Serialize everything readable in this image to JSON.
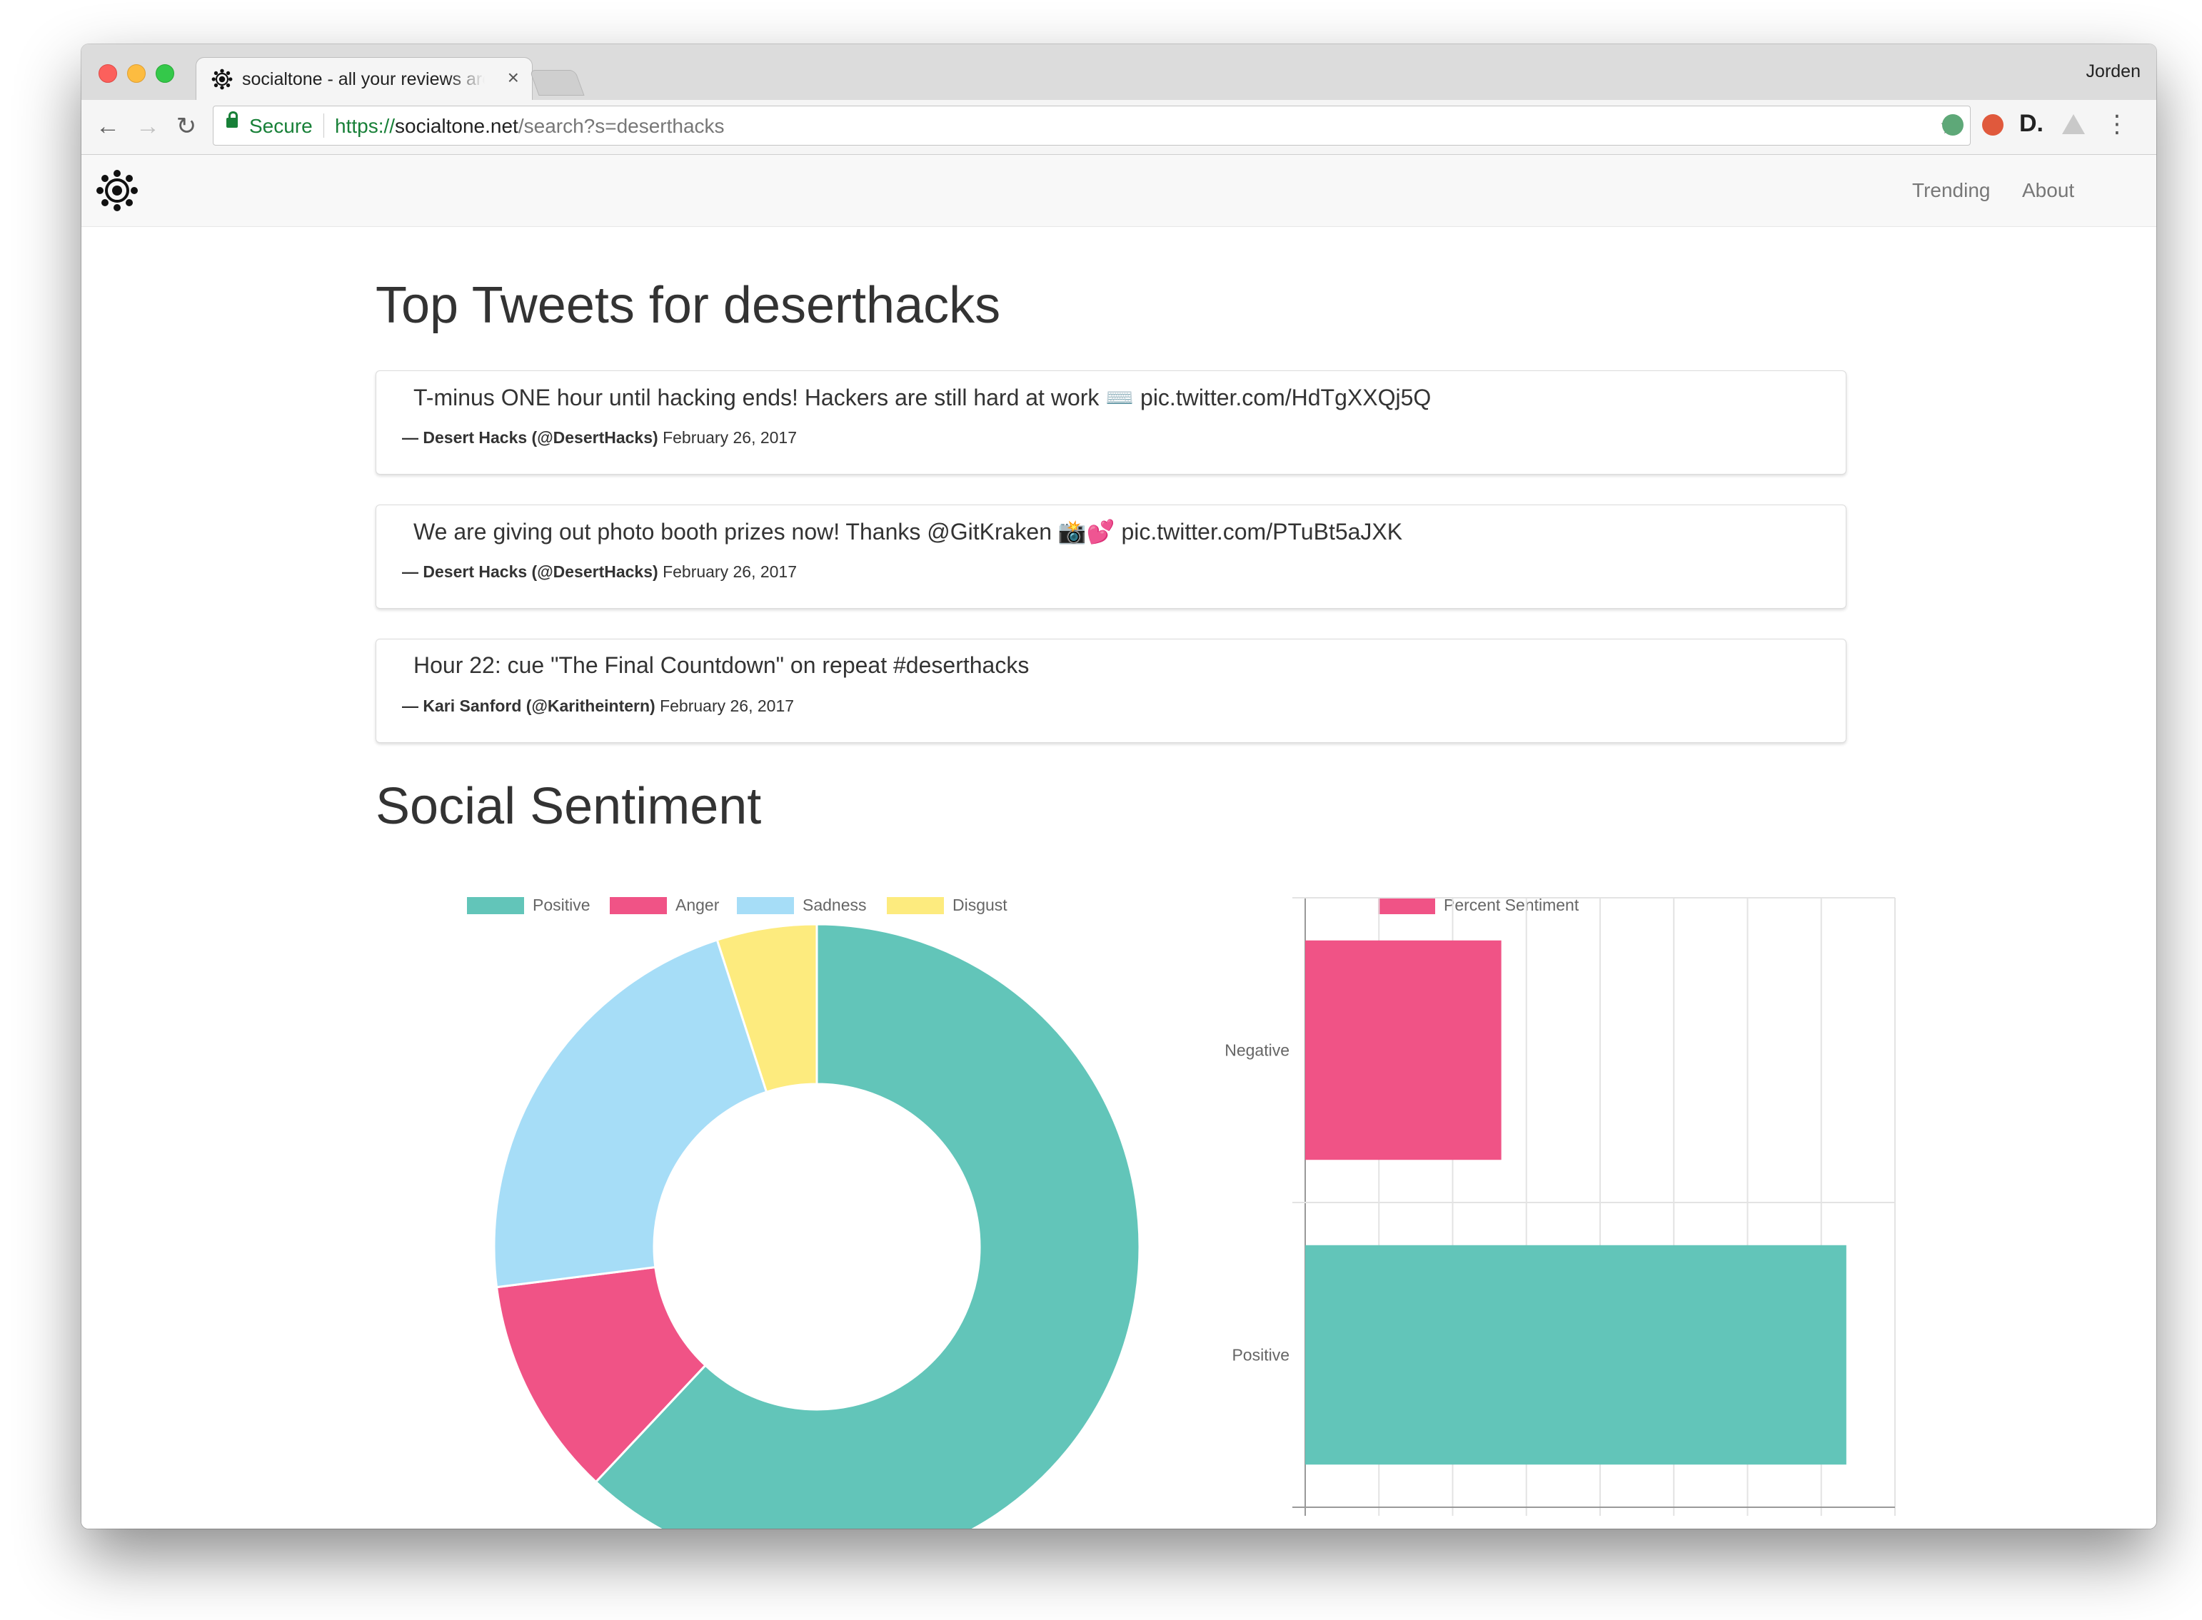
{
  "browser": {
    "tab_title": "socialtone - all your reviews are",
    "tab_close": "×",
    "profile_name": "Jorden",
    "back_icon": "←",
    "forward_icon": "→",
    "reload_icon": "↻",
    "secure_label": "Secure",
    "url_scheme": "https://",
    "url_host": "socialtone.net",
    "url_path": "/search?s=deserthacks",
    "star_icon": "☆",
    "menu_icon": "⋮",
    "extension_d_label": "D."
  },
  "navbar": {
    "links": [
      "Trending",
      "About"
    ]
  },
  "main": {
    "tweets_heading": "Top Tweets for deserthacks",
    "tweets": [
      {
        "text": "T-minus ONE hour until hacking ends! Hackers are still hard at work ⌨️ pic.twitter.com/HdTgXXQj5Q",
        "dash": "—",
        "author": "Desert Hacks (@DesertHacks)",
        "date": "February 26, 2017"
      },
      {
        "text": "We are giving out photo booth prizes now! Thanks @GitKraken 📸💕 pic.twitter.com/PTuBt5aJXK",
        "dash": "—",
        "author": "Desert Hacks (@DesertHacks)",
        "date": "February 26, 2017"
      },
      {
        "text": "Hour 22: cue \"The Final Countdown\" on repeat #deserthacks",
        "dash": "—",
        "author": "Kari Sanford (@Karitheintern)",
        "date": "February 26, 2017"
      }
    ],
    "sentiment_heading": "Social Sentiment"
  },
  "colors": {
    "teal": "#62c5b9",
    "pink": "#f05386",
    "lightblue": "#a6ddf7",
    "yellow": "#fdeb7e"
  },
  "chart_data": [
    {
      "type": "pie",
      "variant": "doughnut",
      "legend_position": "top",
      "labels": [
        "Positive",
        "Anger",
        "Sadness",
        "Disgust"
      ],
      "values": [
        62,
        11,
        22,
        5
      ],
      "colors": [
        "#62c5b9",
        "#f05386",
        "#a6ddf7",
        "#fdeb7e"
      ]
    },
    {
      "type": "bar",
      "orientation": "horizontal",
      "legend_position": "top",
      "categories": [
        "Negative",
        "Positive"
      ],
      "series": [
        {
          "name": "Percent Sentiment",
          "values": [
            26.6,
            73.4
          ],
          "colors": [
            "#f05386",
            "#62c5b9"
          ]
        }
      ],
      "xlim": [
        0,
        80
      ],
      "xticks": [
        0,
        10,
        20,
        30,
        40,
        50,
        60,
        70,
        80
      ],
      "grid": true
    }
  ]
}
